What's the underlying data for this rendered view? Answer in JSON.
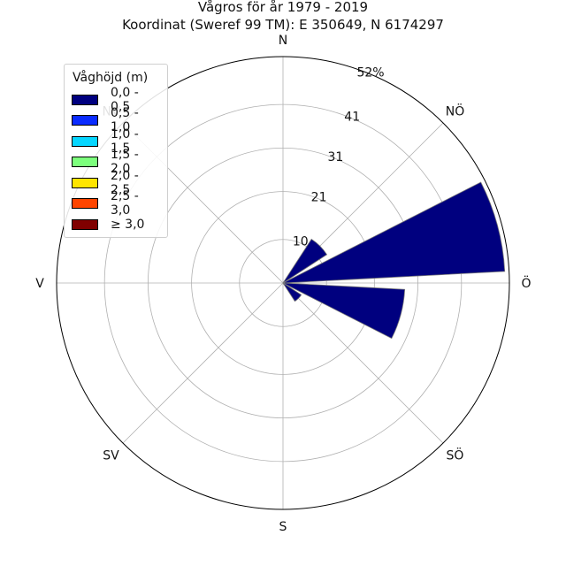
{
  "chart_data": {
    "type": "polar-bar",
    "title": "Vågros för år 1979 - 2019",
    "subtitle": "Koordinat (Sweref 99 TM): E 350649, N 6174297",
    "directions": [
      "N",
      "NÖ",
      "Ö",
      "SÖ",
      "S",
      "SV",
      "V",
      "NV"
    ],
    "r_max": 52,
    "r_ticks": [
      "10",
      "21",
      "31",
      "41",
      "52%"
    ],
    "r_tick_values": [
      10,
      21,
      31,
      41,
      52
    ],
    "grid": true,
    "legend_position": "top-left",
    "legend": {
      "title": "Våghöjd (m)",
      "entries": [
        {
          "label": "0,0 - 0,5",
          "color": "#00007f"
        },
        {
          "label": "0,5 - 1,0",
          "color": "#0a2bff"
        },
        {
          "label": "1,0 - 1,5",
          "color": "#06d6ff"
        },
        {
          "label": "1,5 - 2,0",
          "color": "#7cff7c"
        },
        {
          "label": "2,0 - 2,5",
          "color": "#ffe500"
        },
        {
          "label": "2,5 - 3,0",
          "color": "#ff4500"
        },
        {
          "label": "≥ 3,0",
          "color": "#800000"
        }
      ]
    },
    "bars": [
      {
        "direction_deg": 45,
        "series": "0,0 - 0,5",
        "value": 12
      },
      {
        "direction_deg": 75,
        "series": "0,0 - 0,5",
        "value": 51
      },
      {
        "direction_deg": 105,
        "series": "0,0 - 0,5",
        "value": 28
      },
      {
        "direction_deg": 135,
        "series": "0,0 - 0,5",
        "value": 5
      }
    ]
  }
}
